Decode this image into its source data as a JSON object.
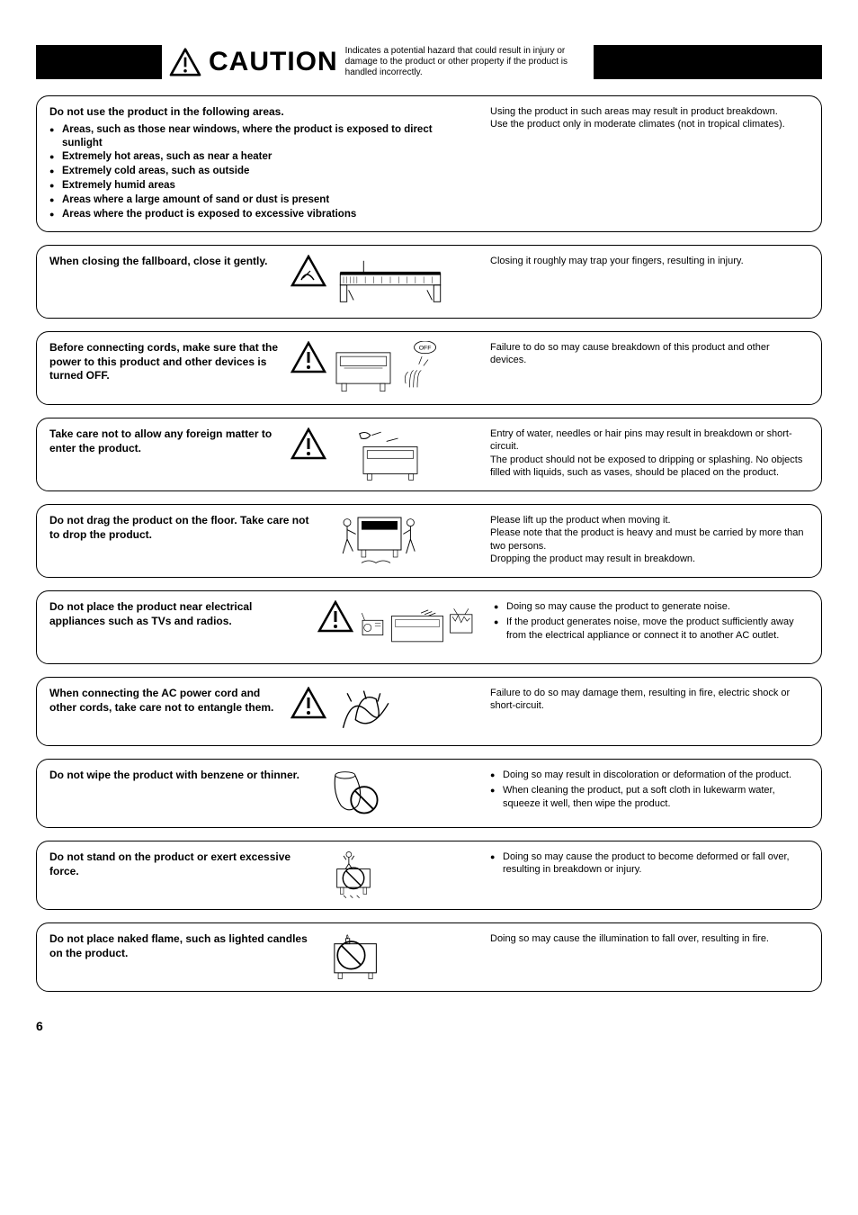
{
  "header": {
    "caution_label": "CAUTION",
    "caution_desc": "Indicates a potential hazard that could result in injury or damage to the product or other property if the product is handled incorrectly."
  },
  "boxes": [
    {
      "title": "Do not use the product in the following areas.",
      "bullets": [
        "Areas, such as those near windows, where the product is exposed to direct sunlight",
        "Extremely hot areas, such as near a heater",
        "Extremely cold areas, such as outside",
        "Extremely humid areas",
        "Areas where a large amount of sand or dust is present",
        "Areas where the product is exposed to excessive vibrations"
      ],
      "right": "Using the product in such areas may result in product breakdown.\nUse the product only in moderate climates (not in tropical climates)."
    },
    {
      "title": "When closing the fallboard, close it gently.",
      "right": "Closing it roughly may trap your fingers, resulting in injury."
    },
    {
      "title": "Before connecting cords, make sure that the power to this product and other devices is turned OFF.",
      "off_label": "OFF",
      "right": "Failure to do so may cause breakdown of this product and other devices."
    },
    {
      "title": "Take care not to allow any foreign matter to enter the product.",
      "right": "Entry of water, needles or hair pins may result in breakdown or short-circuit.\nThe product should not be exposed to dripping or splashing.  No objects filled with liquids, such as vases, should be placed on the product."
    },
    {
      "title": "Do not drag the product on the floor. Take care not to drop the product.",
      "right": "Please lift up the product when moving it.\nPlease note that the product is heavy and must be carried by more than two persons.\nDropping the product may result in breakdown."
    },
    {
      "title": "Do not place the product near electrical appliances such as TVs and radios.",
      "right_bullets": [
        "Doing so may cause the product to generate noise.",
        "If the product generates noise, move the product sufficiently away from the electrical appliance or connect it to another AC outlet."
      ]
    },
    {
      "title": "When connecting the AC power cord and other cords, take care not to entangle them.",
      "right": "Failure to do so may damage them, resulting in fire, electric shock or short-circuit."
    },
    {
      "title": "Do not wipe the product with benzene or thinner.",
      "right_bullets": [
        "Doing so may result in discoloration or deformation of the product.",
        "When cleaning the product, put a soft cloth in lukewarm water, squeeze it well, then wipe the product."
      ]
    },
    {
      "title": "Do not stand on the product or exert excessive force.",
      "right_bullets": [
        "Doing so may cause the product to become deformed or fall over, resulting in breakdown or injury."
      ]
    },
    {
      "title": "Do not place naked flame, such as lighted candles on the product.",
      "right": "Doing so may cause the illumination to fall over, resulting in fire."
    }
  ],
  "page_number": "6"
}
